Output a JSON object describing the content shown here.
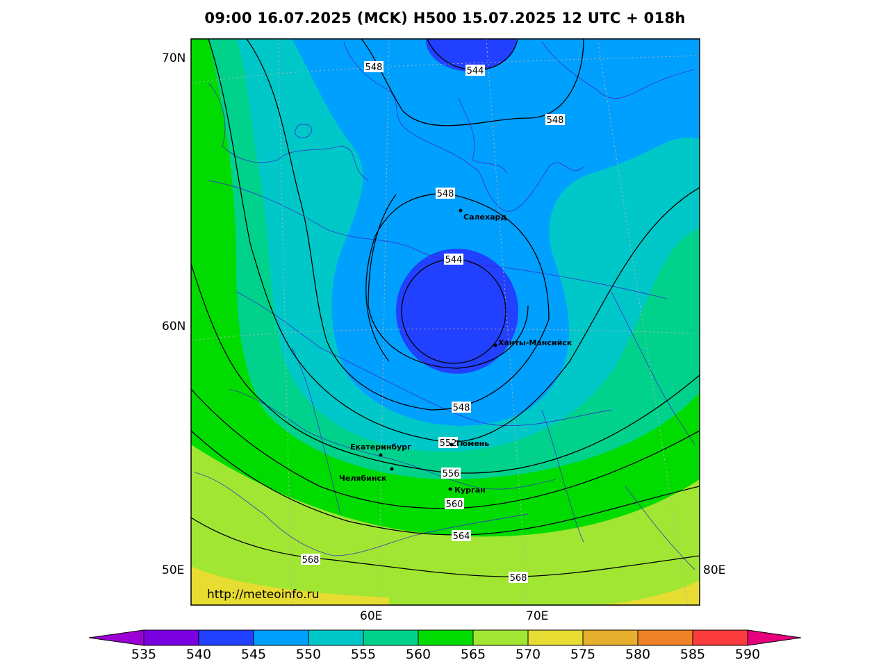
{
  "title": "09:00 16.07.2025 (MCK) H500  15.07.2025 12 UTC + 018h",
  "watermark": "http://meteoinfo.ru",
  "axes": {
    "lat_70": "70N",
    "lat_60": "60N",
    "lon_50": "50E",
    "lon_80": "80E",
    "lon_60": "60E",
    "lon_70": "70E"
  },
  "cities": [
    {
      "name": "Салехард"
    },
    {
      "name": "Ханты-Мансийск"
    },
    {
      "name": "Екатеринбург"
    },
    {
      "name": "Тюмень"
    },
    {
      "name": "Челябинск"
    },
    {
      "name": "Курган"
    }
  ],
  "contour_labels": {
    "c548_top": "548",
    "c544_top": "544",
    "c548_right": "548",
    "c548_mid": "548",
    "c544_center": "544",
    "c548_bottom": "548",
    "c552": "552",
    "c556": "556",
    "c560": "560",
    "c564": "564",
    "c568_left": "568",
    "c568_bottom": "568"
  },
  "colorbar": {
    "labels": [
      "535",
      "540",
      "545",
      "550",
      "555",
      "560",
      "565",
      "570",
      "575",
      "580",
      "585",
      "590"
    ],
    "colors": [
      "#9c00d6",
      "#7a00e0",
      "#2240ff",
      "#00a0ff",
      "#00c8c8",
      "#00d28c",
      "#00dc00",
      "#a0e632",
      "#e6dc32",
      "#e6af2d",
      "#f08228",
      "#fa3c3c",
      "#e6007c"
    ]
  },
  "colors": {
    "c545": "#2240ff",
    "c550": "#00a0ff",
    "c555": "#00c8c8",
    "c560": "#00d28c",
    "c565": "#00dc00",
    "c570": "#a0e632",
    "c575": "#e6dc32"
  }
}
